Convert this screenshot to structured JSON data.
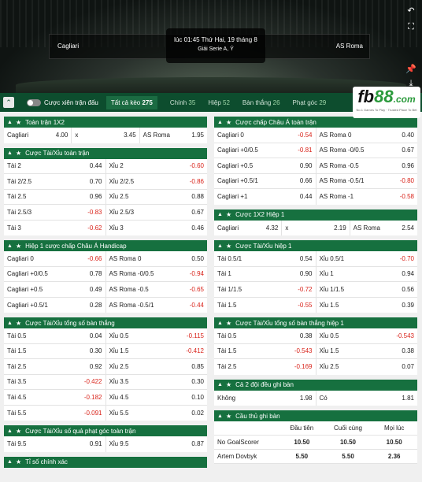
{
  "match": {
    "home": "Cagliari",
    "away": "AS Roma",
    "time": "lúc 01:45 Thứ Hai, 19 tháng 8",
    "league": "Giải Serie A, Ý"
  },
  "filter": {
    "toggle_label": "Cược xiên trận đấu",
    "tabs": [
      {
        "label": "Tất cả kèo",
        "count": "275"
      },
      {
        "label": "Chính",
        "count": "35"
      },
      {
        "label": "Hiệp",
        "count": "52"
      },
      {
        "label": "Bàn thắng",
        "count": "26"
      },
      {
        "label": "Phạt góc",
        "count": "29"
      }
    ],
    "extra_count": "C"
  },
  "logo": {
    "text1": "fb",
    "text2": "88",
    "text3": ".com",
    "tagline": "No.1 Games To Play · Trusted Place To Bet"
  },
  "left": [
    {
      "title": "Toàn trận 1X2",
      "cols": 3,
      "rows": [
        [
          [
            "Cagliari",
            "4.00"
          ],
          [
            "x",
            "3.45"
          ],
          [
            "AS Roma",
            "1.95"
          ]
        ]
      ]
    },
    {
      "title": "Cược Tài/Xỉu toàn trận",
      "cols": 2,
      "rows": [
        [
          [
            "Tài 2",
            "0.44"
          ],
          [
            "Xỉu 2",
            "-0.60"
          ]
        ],
        [
          [
            "Tài 2/2.5",
            "0.70"
          ],
          [
            "Xỉu 2/2.5",
            "-0.86"
          ]
        ],
        [
          [
            "Tài 2.5",
            "0.96"
          ],
          [
            "Xỉu 2.5",
            "0.88"
          ]
        ],
        [
          [
            "Tài 2.5/3",
            "-0.83"
          ],
          [
            "Xỉu 2.5/3",
            "0.67"
          ]
        ],
        [
          [
            "Tài 3",
            "-0.62"
          ],
          [
            "Xỉu 3",
            "0.46"
          ]
        ]
      ]
    },
    {
      "title": "Hiệp 1 cược chấp Châu Á Handicap",
      "cols": 2,
      "rows": [
        [
          [
            "Cagliari 0",
            "-0.66"
          ],
          [
            "AS Roma 0",
            "0.50"
          ]
        ],
        [
          [
            "Cagliari +0/0.5",
            "0.78"
          ],
          [
            "AS Roma -0/0.5",
            "-0.94"
          ]
        ],
        [
          [
            "Cagliari +0.5",
            "0.49"
          ],
          [
            "AS Roma -0.5",
            "-0.65"
          ]
        ],
        [
          [
            "Cagliari +0.5/1",
            "0.28"
          ],
          [
            "AS Roma -0.5/1",
            "-0.44"
          ]
        ]
      ]
    },
    {
      "title": "Cược Tài/Xỉu tổng số bàn thắng",
      "cols": 2,
      "rows": [
        [
          [
            "Tài 0.5",
            "0.04"
          ],
          [
            "Xỉu 0.5",
            "-0.115"
          ]
        ],
        [
          [
            "Tài 1.5",
            "0.30"
          ],
          [
            "Xỉu 1.5",
            "-0.412"
          ]
        ],
        [
          [
            "Tài 2.5",
            "0.92"
          ],
          [
            "Xỉu 2.5",
            "0.85"
          ]
        ],
        [
          [
            "Tài 3.5",
            "-0.422"
          ],
          [
            "Xỉu 3.5",
            "0.30"
          ]
        ],
        [
          [
            "Tài 4.5",
            "-0.182"
          ],
          [
            "Xỉu 4.5",
            "0.10"
          ]
        ],
        [
          [
            "Tài 5.5",
            "-0.091"
          ],
          [
            "Xỉu 5.5",
            "0.02"
          ]
        ]
      ]
    },
    {
      "title": "Cược Tài/Xỉu số quả phạt góc toàn trận",
      "cols": 2,
      "rows": [
        [
          [
            "Tài 9.5",
            "0.91"
          ],
          [
            "Xỉu 9.5",
            "0.87"
          ]
        ]
      ]
    },
    {
      "title": "Tỉ số chính xác",
      "cols": 2,
      "rows": []
    }
  ],
  "right": [
    {
      "title": "Cược chấp Châu Á toàn trận",
      "cols": 2,
      "rows": [
        [
          [
            "Cagliari 0",
            "-0.54"
          ],
          [
            "AS Roma 0",
            "0.40"
          ]
        ],
        [
          [
            "Cagliari +0/0.5",
            "-0.81"
          ],
          [
            "AS Roma -0/0.5",
            "0.67"
          ]
        ],
        [
          [
            "Cagliari +0.5",
            "0.90"
          ],
          [
            "AS Roma -0.5",
            "0.96"
          ]
        ],
        [
          [
            "Cagliari +0.5/1",
            "0.66"
          ],
          [
            "AS Roma -0.5/1",
            "-0.80"
          ]
        ],
        [
          [
            "Cagliari +1",
            "0.44"
          ],
          [
            "AS Roma -1",
            "-0.58"
          ]
        ]
      ]
    },
    {
      "title": "Cược 1X2 Hiệp 1",
      "cols": 3,
      "rows": [
        [
          [
            "Cagliari",
            "4.32"
          ],
          [
            "x",
            "2.19"
          ],
          [
            "AS Roma",
            "2.54"
          ]
        ]
      ]
    },
    {
      "title": "Cược Tài/Xỉu hiệp 1",
      "cols": 2,
      "rows": [
        [
          [
            "Tài 0.5/1",
            "0.54"
          ],
          [
            "Xỉu 0.5/1",
            "-0.70"
          ]
        ],
        [
          [
            "Tài 1",
            "0.90"
          ],
          [
            "Xỉu 1",
            "0.94"
          ]
        ],
        [
          [
            "Tài 1/1.5",
            "-0.72"
          ],
          [
            "Xỉu 1/1.5",
            "0.56"
          ]
        ],
        [
          [
            "Tài 1.5",
            "-0.55"
          ],
          [
            "Xỉu 1.5",
            "0.39"
          ]
        ]
      ]
    },
    {
      "title": "Cược Tài/Xỉu tổng số bàn thắng hiệp 1",
      "cols": 2,
      "rows": [
        [
          [
            "Tài 0.5",
            "0.38"
          ],
          [
            "Xỉu 0.5",
            "-0.543"
          ]
        ],
        [
          [
            "Tài 1.5",
            "-0.543"
          ],
          [
            "Xỉu 1.5",
            "0.38"
          ]
        ],
        [
          [
            "Tài 2.5",
            "-0.169"
          ],
          [
            "Xỉu 2.5",
            "0.07"
          ]
        ]
      ]
    },
    {
      "title": "Cả 2 đội đều ghi bàn",
      "cols": 2,
      "rows": [
        [
          [
            "Không",
            "1.98"
          ],
          [
            "Có",
            "1.81"
          ]
        ]
      ]
    }
  ],
  "scorers": {
    "title": "Cầu thủ ghi bàn",
    "headers": [
      "Đầu tiên",
      "Cuối cùng",
      "Mọi lúc"
    ],
    "rows": [
      [
        "No GoalScorer",
        "10.50",
        "10.50",
        "10.50"
      ],
      [
        "Artem Dovbyk",
        "5.50",
        "5.50",
        "2.36"
      ]
    ]
  }
}
